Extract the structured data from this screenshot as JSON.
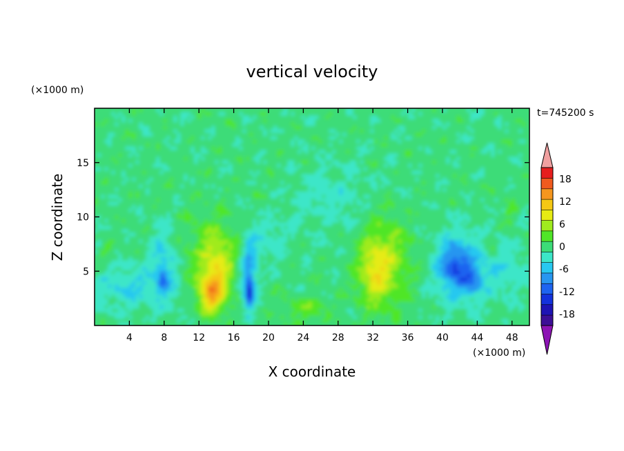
{
  "chart_data": {
    "type": "heatmap",
    "title": "vertical velocity",
    "xlabel": "X coordinate",
    "ylabel": "Z coordinate",
    "x_unit": "(×1000 m)",
    "y_unit": "(×1000 m)",
    "time_label": "t=745200 s",
    "xlim": [
      0,
      50
    ],
    "ylim": [
      0,
      20
    ],
    "x_ticks": [
      4,
      8,
      12,
      16,
      20,
      24,
      28,
      32,
      36,
      40,
      44,
      48
    ],
    "y_ticks": [
      5,
      10,
      15
    ],
    "grid": false,
    "colorbar": {
      "levels": [
        -21,
        -18,
        -15,
        -12,
        -9,
        -6,
        -3,
        0,
        3,
        6,
        9,
        12,
        15,
        18,
        21
      ],
      "labels": [
        18,
        12,
        6,
        0,
        -6,
        -12,
        -18
      ],
      "colors": [
        "#3c0f96",
        "#1e14b4",
        "#1432dc",
        "#1e64f0",
        "#2896f0",
        "#28c8f0",
        "#3ce6c8",
        "#3cdc78",
        "#50e628",
        "#a0eb1e",
        "#e6eb14",
        "#f5c814",
        "#f5961e",
        "#f05a1e",
        "#e61e1e"
      ],
      "under_color": "#8c14b4",
      "over_color": "#f0a0a0"
    },
    "features": [
      {
        "x": 13.5,
        "z": 3.5,
        "peak": 12
      },
      {
        "x": 32.5,
        "z": 5.5,
        "peak": 6
      },
      {
        "x": 17.8,
        "z": 3.2,
        "peak": -12
      },
      {
        "x": 41.5,
        "z": 5.5,
        "peak": -9
      },
      {
        "x": 8.0,
        "z": 5.5,
        "peak": -8
      },
      {
        "x": 24.5,
        "z": 1.5,
        "peak": 3
      }
    ]
  }
}
